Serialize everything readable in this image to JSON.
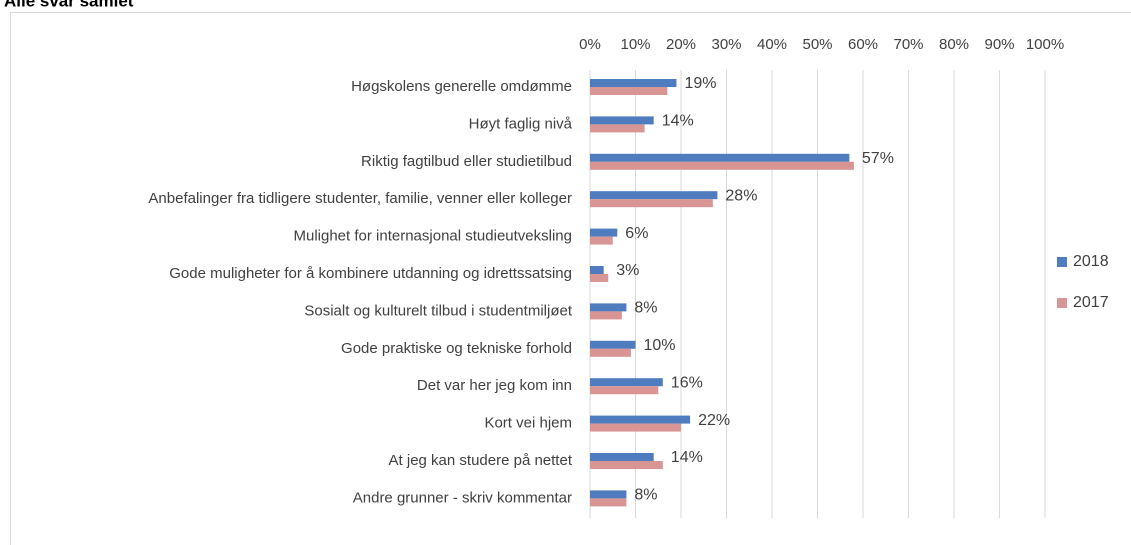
{
  "chart_data": {
    "type": "bar",
    "orientation": "horizontal",
    "title": "Alle svar samlet",
    "categories": [
      "Høgskolens generelle omdømme",
      "Høyt faglig nivå",
      "Riktig fagtilbud eller studietilbud",
      "Anbefalinger fra tidligere studenter, familie, venner eller kolleger",
      "Mulighet for internasjonal studieutveksling",
      "Gode muligheter for å kombinere utdanning og idrettssatsing",
      "Sosialt og kulturelt tilbud i studentmiljøet",
      "Gode praktiske og tekniske forhold",
      "Det var her jeg kom inn",
      "Kort vei hjem",
      "At jeg kan studere på nettet",
      "Andre grunner - skriv kommentar"
    ],
    "series": [
      {
        "name": "2018",
        "color": "#4f7bbf",
        "values": [
          19,
          14,
          57,
          28,
          6,
          3,
          8,
          10,
          16,
          22,
          14,
          8
        ],
        "value_labels": [
          "19%",
          "14%",
          "57%",
          "28%",
          "6%",
          "3%",
          "8%",
          "10%",
          "16%",
          "22%",
          "14%",
          "8%"
        ]
      },
      {
        "name": "2017",
        "color": "#d99594",
        "values": [
          17,
          12,
          58,
          27,
          5,
          4,
          7,
          9,
          15,
          20,
          16,
          8
        ]
      }
    ],
    "xlim": [
      0,
      100
    ],
    "xticks": [
      {
        "value": 0,
        "label": "0%"
      },
      {
        "value": 10,
        "label": "10%"
      },
      {
        "value": 20,
        "label": "20%"
      },
      {
        "value": 30,
        "label": "30%"
      },
      {
        "value": 40,
        "label": "40%"
      },
      {
        "value": 50,
        "label": "50%"
      },
      {
        "value": 60,
        "label": "60%"
      },
      {
        "value": 70,
        "label": "70%"
      },
      {
        "value": 80,
        "label": "80%"
      },
      {
        "value": 90,
        "label": "90%"
      },
      {
        "value": 100,
        "label": "100%"
      }
    ],
    "grid": true,
    "legend": "right"
  }
}
